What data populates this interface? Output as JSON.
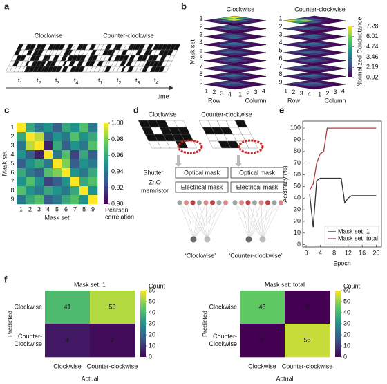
{
  "panel_labels": [
    "a",
    "b",
    "c",
    "d",
    "e",
    "f"
  ],
  "panel_a": {
    "groups": [
      "Clockwise",
      "Counter-clockwise"
    ],
    "time_symbol": "t",
    "time_indices": [
      "1",
      "2",
      "3",
      "4"
    ],
    "axis_label": "time"
  },
  "panel_d": {
    "titles": [
      "Clockwise",
      "Counter-clockwise"
    ],
    "shutter": "Shutter",
    "memristor": [
      "ZnO",
      "memristor"
    ],
    "boxes": [
      "Optical mask",
      "Electrical mask"
    ],
    "outputs": [
      "‘Clockwise’",
      "‘Counter-clockwise’"
    ]
  },
  "chart_data": [
    {
      "type": "stacked_heatmap",
      "titles": [
        "Clockwise",
        "Counter-clockwise"
      ],
      "ylabel": "Mask set",
      "layers": [
        "1",
        "2",
        "3",
        "4",
        "5",
        "6",
        "7",
        "8",
        "9"
      ],
      "row_label": "Row",
      "column_label": "Column",
      "row_ticks": [
        1,
        2,
        3,
        4
      ],
      "column_ticks": [
        1,
        2,
        3,
        4
      ],
      "colorbar_label": "Normalized Conductance",
      "clim": [
        0.92,
        7.28
      ],
      "cticks": [
        7.28,
        6.01,
        4.74,
        3.46,
        2.19,
        0.92
      ],
      "maps": [
        [
          [
            1.2,
            2.0,
            5.5,
            7.2,
            1.5,
            3.5,
            6.8,
            4.0,
            1.0,
            2.0,
            3.0,
            1.8,
            0.9,
            1.1,
            1.4,
            1.0
          ],
          [
            1.1,
            1.5,
            2.4,
            2.0,
            1.3,
            2.8,
            3.2,
            1.6,
            1.0,
            1.8,
            2.2,
            1.2,
            0.9,
            1.0,
            1.2,
            1.0
          ],
          [
            1.0,
            1.4,
            2.0,
            1.5,
            1.2,
            2.5,
            2.8,
            1.4,
            1.5,
            3.0,
            2.2,
            1.1,
            1.0,
            1.3,
            1.1,
            0.9
          ],
          [
            1.0,
            1.3,
            1.8,
            1.4,
            1.4,
            2.6,
            3.4,
            1.6,
            1.2,
            2.2,
            2.6,
            1.3,
            0.9,
            1.1,
            1.2,
            1.0
          ],
          [
            1.1,
            1.6,
            2.2,
            1.3,
            1.3,
            3.0,
            2.7,
            1.5,
            1.1,
            1.9,
            2.4,
            1.2,
            1.0,
            1.2,
            1.3,
            0.9
          ],
          [
            1.0,
            1.5,
            2.0,
            1.6,
            1.2,
            2.4,
            3.1,
            1.7,
            1.3,
            2.3,
            2.0,
            1.1,
            0.9,
            1.0,
            1.2,
            1.0
          ],
          [
            1.2,
            1.8,
            2.3,
            1.4,
            1.4,
            2.7,
            2.9,
            1.5,
            1.0,
            1.7,
            2.5,
            1.3,
            0.9,
            1.1,
            1.3,
            1.0
          ],
          [
            1.0,
            1.4,
            1.9,
            1.3,
            1.3,
            2.9,
            3.3,
            1.6,
            1.2,
            2.1,
            2.3,
            1.2,
            1.0,
            1.2,
            1.1,
            0.9
          ],
          [
            1.1,
            1.6,
            2.1,
            1.5,
            1.2,
            2.5,
            2.8,
            1.4,
            1.1,
            2.0,
            2.2,
            1.1,
            0.9,
            1.0,
            1.2,
            1.0
          ]
        ],
        [
          [
            7.0,
            5.0,
            2.0,
            1.2,
            4.5,
            6.2,
            2.5,
            1.1,
            1.8,
            2.8,
            1.6,
            1.0,
            1.0,
            1.3,
            1.1,
            0.9
          ],
          [
            2.0,
            2.4,
            1.5,
            1.1,
            1.6,
            3.1,
            2.6,
            1.3,
            1.0,
            1.9,
            2.1,
            1.2,
            0.9,
            1.0,
            1.2,
            1.0
          ],
          [
            1.5,
            2.0,
            1.4,
            1.0,
            1.3,
            2.7,
            3.0,
            1.5,
            1.2,
            2.6,
            2.0,
            1.1,
            1.0,
            1.2,
            1.1,
            0.9
          ],
          [
            1.4,
            1.8,
            1.3,
            1.0,
            1.5,
            2.9,
            3.3,
            1.6,
            1.1,
            2.3,
            2.5,
            1.2,
            0.9,
            1.1,
            1.2,
            1.0
          ],
          [
            1.6,
            2.2,
            1.6,
            1.1,
            1.4,
            3.2,
            2.8,
            1.4,
            1.2,
            2.0,
            2.3,
            1.1,
            1.0,
            1.2,
            1.3,
            0.9
          ],
          [
            1.5,
            2.0,
            1.5,
            1.2,
            1.3,
            2.6,
            3.0,
            1.6,
            1.3,
            2.2,
            2.1,
            1.2,
            0.9,
            1.0,
            1.2,
            1.0
          ],
          [
            1.8,
            2.3,
            1.4,
            1.1,
            1.5,
            2.8,
            2.9,
            1.5,
            1.1,
            1.8,
            2.4,
            1.3,
            0.9,
            1.1,
            1.3,
            1.0
          ],
          [
            1.4,
            1.9,
            1.3,
            1.0,
            1.4,
            3.0,
            3.2,
            1.5,
            1.2,
            2.2,
            2.2,
            1.2,
            1.0,
            1.2,
            1.1,
            0.9
          ],
          [
            1.6,
            2.1,
            1.5,
            1.1,
            1.3,
            2.6,
            2.9,
            1.4,
            1.1,
            2.1,
            2.3,
            1.1,
            0.9,
            1.0,
            1.2,
            1.0
          ]
        ]
      ]
    },
    {
      "type": "heatmap",
      "categories": [
        "1",
        "2",
        "3",
        "4",
        "5",
        "6",
        "7",
        "8",
        "9"
      ],
      "xlabel": "Mask set",
      "ylabel": "Mask set",
      "colorbar_label": [
        "Pearson",
        "correlation"
      ],
      "clim": [
        0.9,
        1.0
      ],
      "cticks": [
        {
          "value": 1,
          "label": "1.00"
        },
        0.98,
        0.96,
        0.94,
        0.92,
        {
          "value": 0.9,
          "label": "0.90"
        }
      ],
      "values": [
        [
          1,
          0.96,
          0.94,
          0.95,
          0.93,
          0.96,
          0.95,
          0.97,
          0.94
        ],
        [
          0.96,
          1,
          0.99,
          0.93,
          0.95,
          0.94,
          0.97,
          0.95,
          0.96
        ],
        [
          0.94,
          0.99,
          1,
          0.91,
          0.96,
          0.93,
          0.95,
          0.94,
          0.97
        ],
        [
          0.95,
          0.93,
          0.91,
          1,
          0.94,
          0.97,
          0.92,
          0.96,
          0.93
        ],
        [
          0.93,
          0.95,
          0.96,
          0.94,
          1,
          0.98,
          0.93,
          0.95,
          0.94
        ],
        [
          0.96,
          0.94,
          0.93,
          0.97,
          0.98,
          1,
          0.95,
          0.94,
          0.96
        ],
        [
          0.95,
          0.97,
          0.95,
          0.92,
          0.93,
          0.95,
          1,
          0.96,
          0.97
        ],
        [
          0.97,
          0.95,
          0.94,
          0.96,
          0.95,
          0.94,
          0.96,
          1,
          0.95
        ],
        [
          0.94,
          0.96,
          0.97,
          0.93,
          0.94,
          0.96,
          0.97,
          0.95,
          1
        ]
      ]
    },
    {
      "type": "line",
      "xlabel": "Epoch",
      "ylabel": "Accuracy (%)",
      "x": [
        1,
        2,
        3,
        4,
        5,
        6,
        7,
        8,
        9,
        10,
        11,
        12,
        13,
        14,
        15,
        16,
        17,
        18,
        19,
        20
      ],
      "series": [
        {
          "name": "Mask set: 1",
          "color": "#333333",
          "values": [
            43,
            15,
            55,
            57,
            57,
            57,
            57,
            57,
            57,
            57,
            36,
            40,
            42,
            42,
            42,
            42,
            42,
            42,
            42,
            42
          ]
        },
        {
          "name": "Mask set: total",
          "color": "#b03a3a",
          "values": [
            47,
            52,
            70,
            78,
            80,
            100,
            100,
            100,
            100,
            100,
            100,
            100,
            100,
            100,
            100,
            100,
            100,
            100,
            100,
            100
          ]
        }
      ],
      "xlim": [
        -1,
        21.5
      ],
      "xticks": [
        0,
        4,
        8,
        12,
        16,
        20
      ],
      "ylim": [
        -2,
        106
      ],
      "yticks": [
        0,
        10,
        20,
        30,
        40,
        50,
        60,
        70,
        80,
        90,
        100
      ],
      "legend": "lower right"
    },
    {
      "type": "heatmap",
      "title": "Mask set: 1",
      "xcategories": [
        "Clockwise",
        "Counter-clockwise"
      ],
      "ycategories": [
        [
          "Clockwise"
        ],
        [
          "Counter-",
          "Clockwise"
        ]
      ],
      "xlabel": "Actual",
      "ylabel": "Predicted",
      "colorbar_label": "Count",
      "clim": [
        0,
        60
      ],
      "cticks": [
        0,
        10,
        20,
        30,
        40,
        50,
        60
      ],
      "values": [
        [
          41,
          53
        ],
        [
          4,
          2
        ]
      ],
      "show_values": true
    },
    {
      "type": "heatmap",
      "title": "Mask set: total",
      "xcategories": [
        "Clockwise",
        "Counter-clockwise"
      ],
      "ycategories": [
        [
          "Clockwise"
        ],
        [
          "Counter-",
          "Clockwise"
        ]
      ],
      "xlabel": "Actual",
      "ylabel": "Predicted",
      "colorbar_label": "Count",
      "clim": [
        0,
        60
      ],
      "cticks": [
        0,
        10,
        20,
        30,
        40,
        50,
        60
      ],
      "values": [
        [
          45,
          0
        ],
        [
          0,
          55
        ]
      ],
      "show_values": true
    }
  ]
}
